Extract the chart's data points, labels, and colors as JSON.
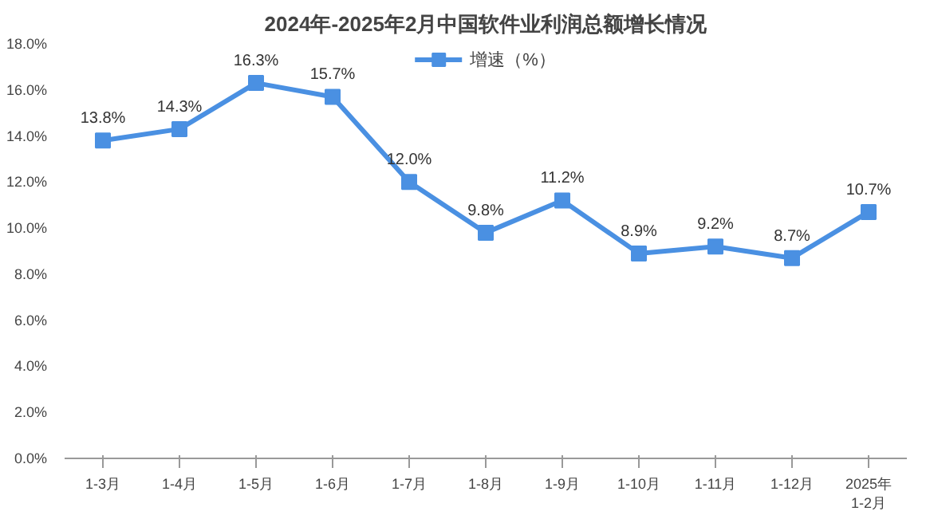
{
  "chart_data": {
    "type": "line",
    "title": "2024年-2025年2月中国软件业利润总额增长情况",
    "categories": [
      "1-3月",
      "1-4月",
      "1-5月",
      "1-6月",
      "1-7月",
      "1-8月",
      "1-9月",
      "1-10月",
      "1-11月",
      "1-12月",
      "2025年\n1-2月"
    ],
    "series": [
      {
        "name": "增速（%）",
        "color": "#4a90e2",
        "values": [
          13.8,
          14.3,
          16.3,
          15.7,
          12.0,
          9.8,
          11.2,
          8.9,
          9.2,
          8.7,
          10.7
        ],
        "value_labels": [
          "13.8%",
          "14.3%",
          "16.3%",
          "15.7%",
          "12.0%",
          "9.8%",
          "11.2%",
          "8.9%",
          "9.2%",
          "8.7%",
          "10.7%"
        ]
      }
    ],
    "ylim": [
      0,
      18
    ],
    "yticks": [
      {
        "value": 0,
        "label": "0.0%"
      },
      {
        "value": 2,
        "label": "2.0%"
      },
      {
        "value": 4,
        "label": "4.0%"
      },
      {
        "value": 6,
        "label": "6.0%"
      },
      {
        "value": 8,
        "label": "8.0%"
      },
      {
        "value": 10,
        "label": "10.0%"
      },
      {
        "value": 12,
        "label": "12.0%"
      },
      {
        "value": 14,
        "label": "14.0%"
      },
      {
        "value": 16,
        "label": "16.0%"
      },
      {
        "value": 18,
        "label": "18.0%"
      }
    ],
    "legend": "top",
    "marker": "square",
    "line_style": "solid",
    "grid": false
  }
}
